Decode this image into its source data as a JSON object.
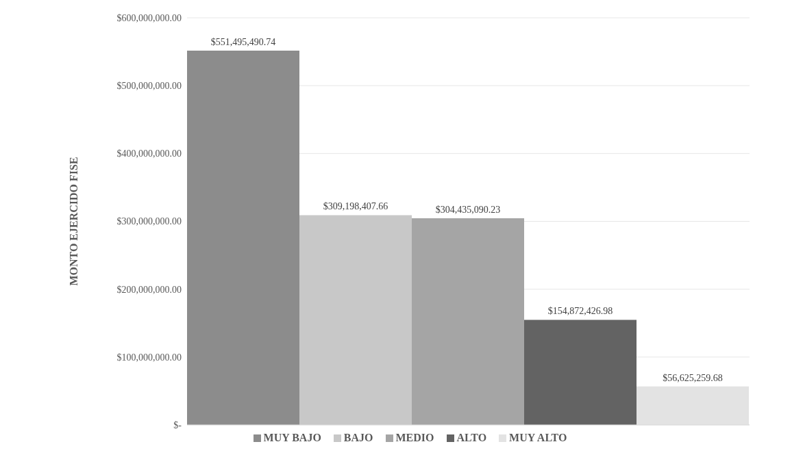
{
  "chart_data": {
    "type": "bar",
    "ylabel": "MONTO EJERCIDO FISE",
    "categories": [
      null
    ],
    "series": [
      {
        "name": "MUY BAJO",
        "color": "#8c8c8c",
        "values": [
          551495490.74
        ],
        "value_labels": [
          "$551,495,490.74"
        ]
      },
      {
        "name": "BAJO",
        "color": "#c8c8c8",
        "values": [
          309198407.66
        ],
        "value_labels": [
          "$309,198,407.66"
        ]
      },
      {
        "name": "MEDIO",
        "color": "#a5a5a5",
        "values": [
          304435090.23
        ],
        "value_labels": [
          "$304,435,090.23"
        ]
      },
      {
        "name": "ALTO",
        "color": "#636363",
        "values": [
          154872426.98
        ],
        "value_labels": [
          "$154,872,426.98"
        ]
      },
      {
        "name": "MUY ALTO",
        "color": "#e3e3e3",
        "values": [
          56625259.68
        ],
        "value_labels": [
          "$56,625,259.68"
        ]
      }
    ],
    "ylim": [
      0,
      600000000
    ],
    "yticks": [
      {
        "value": 0,
        "label": "$-"
      },
      {
        "value": 100000000,
        "label": "$100,000,000.00"
      },
      {
        "value": 200000000,
        "label": "$200,000,000.00"
      },
      {
        "value": 300000000,
        "label": "$300,000,000.00"
      },
      {
        "value": 400000000,
        "label": "$400,000,000.00"
      },
      {
        "value": 500000000,
        "label": "$500,000,000.00"
      },
      {
        "value": 600000000,
        "label": "$600,000,000.00"
      }
    ],
    "grid": "y",
    "legend": "bottom"
  }
}
